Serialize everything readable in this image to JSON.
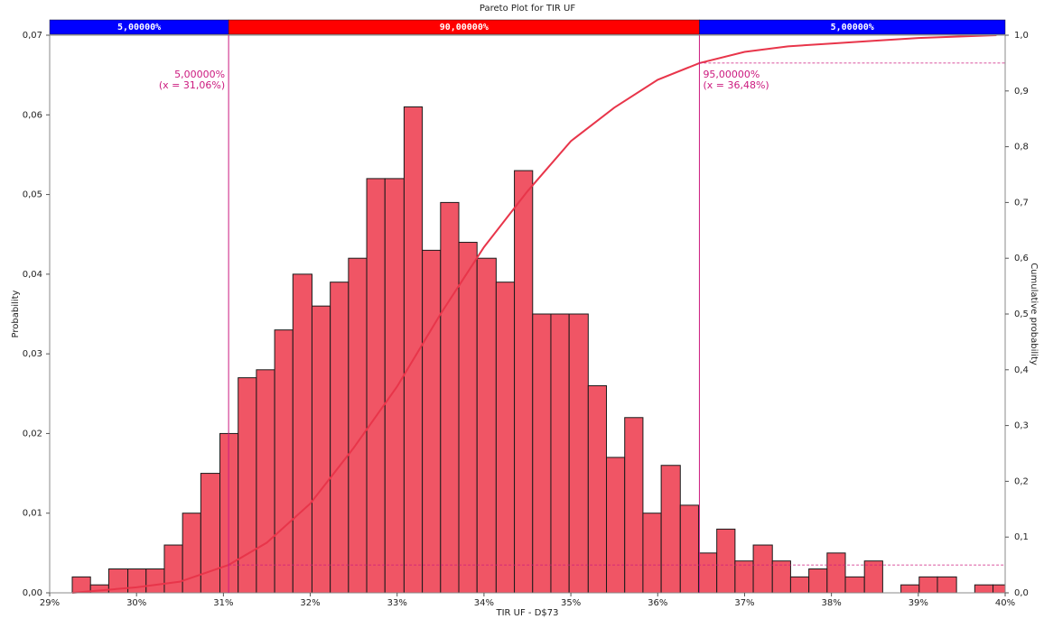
{
  "chart_data": {
    "type": "histogram",
    "title": "Pareto Plot for TIR UF",
    "xlabel": "TIR UF - D$73",
    "ylabel": "Probability",
    "y2label": "Cumulative probability",
    "color": "#f05565",
    "edgecolor": "#1a1a1a",
    "bins": [
      29.26,
      29.47,
      29.68,
      29.9,
      30.11,
      30.32,
      30.53,
      30.74,
      30.96,
      31.17,
      31.38,
      31.59,
      31.8,
      32.02,
      32.23,
      32.44,
      32.65,
      32.86,
      33.08,
      33.29,
      33.5,
      33.71,
      33.92,
      34.14,
      34.35,
      34.56,
      34.77,
      34.98,
      35.2,
      35.41,
      35.62,
      35.83,
      36.04,
      36.26,
      36.47,
      36.68,
      36.89,
      37.1,
      37.32,
      37.53,
      37.74,
      37.95,
      38.16,
      38.38,
      38.59,
      38.8,
      39.01,
      39.22,
      39.44,
      39.65,
      39.86,
      40.07
    ],
    "values": [
      0.002,
      0.001,
      0.003,
      0.003,
      0.003,
      0.006,
      0.01,
      0.015,
      0.02,
      0.027,
      0.028,
      0.033,
      0.04,
      0.036,
      0.039,
      0.042,
      0.052,
      0.052,
      0.061,
      0.043,
      0.049,
      0.044,
      0.042,
      0.039,
      0.053,
      0.035,
      0.035,
      0.035,
      0.026,
      0.017,
      0.022,
      0.01,
      0.016,
      0.011,
      0.005,
      0.008,
      0.004,
      0.006,
      0.004,
      0.002,
      0.003,
      0.005,
      0.002,
      0.004,
      0,
      0.001,
      0.002,
      0.002,
      0,
      0.001,
      0.001
    ],
    "xlim": [
      29,
      40
    ],
    "xticks": [
      {
        "value": 29,
        "label": "29%"
      },
      {
        "value": 30,
        "label": "30%"
      },
      {
        "value": 31,
        "label": "31%"
      },
      {
        "value": 32,
        "label": "32%"
      },
      {
        "value": 33,
        "label": "33%"
      },
      {
        "value": 34,
        "label": "34%"
      },
      {
        "value": 35,
        "label": "35%"
      },
      {
        "value": 36,
        "label": "36%"
      },
      {
        "value": 37,
        "label": "37%"
      },
      {
        "value": 38,
        "label": "38%"
      },
      {
        "value": 39,
        "label": "39%"
      },
      {
        "value": 40,
        "label": "40%"
      }
    ],
    "ylim": [
      0,
      0.07
    ],
    "yticks": [
      {
        "value": 0,
        "label": "0,00"
      },
      {
        "value": 0.01,
        "label": "0,01"
      },
      {
        "value": 0.02,
        "label": "0,02"
      },
      {
        "value": 0.03,
        "label": "0,03"
      },
      {
        "value": 0.04,
        "label": "0,04"
      },
      {
        "value": 0.05,
        "label": "0,05"
      },
      {
        "value": 0.06,
        "label": "0,06"
      },
      {
        "value": 0.07,
        "label": "0,07"
      }
    ],
    "y2lim": [
      0,
      1
    ],
    "y2ticks": [
      {
        "value": 0,
        "label": "0,0"
      },
      {
        "value": 0.1,
        "label": "0,1"
      },
      {
        "value": 0.2,
        "label": "0,2"
      },
      {
        "value": 0.3,
        "label": "0,3"
      },
      {
        "value": 0.4,
        "label": "0,4"
      },
      {
        "value": 0.5,
        "label": "0,5"
      },
      {
        "value": 0.6,
        "label": "0,6"
      },
      {
        "value": 0.7,
        "label": "0,7"
      },
      {
        "value": 0.8,
        "label": "0,8"
      },
      {
        "value": 0.9,
        "label": "0,9"
      },
      {
        "value": 1,
        "label": "1,0"
      }
    ],
    "cumulative": {
      "axis": "y2",
      "color": "#e8354a",
      "x": [
        29.26,
        30.0,
        30.5,
        31.06,
        31.5,
        32.0,
        32.5,
        33.0,
        33.5,
        34.0,
        34.5,
        35.0,
        35.5,
        36.0,
        36.48,
        37.0,
        37.5,
        38.0,
        38.5,
        39.0,
        39.9
      ],
      "values": [
        0,
        0.01,
        0.02,
        0.05,
        0.09,
        0.16,
        0.26,
        0.37,
        0.5,
        0.62,
        0.72,
        0.81,
        0.87,
        0.92,
        0.95,
        0.97,
        0.98,
        0.985,
        0.99,
        0.995,
        1.0
      ]
    },
    "markers": [
      {
        "x": 31.06,
        "x_label": "(x = 31,06%)",
        "p": 0.05,
        "p_label": "5,00000%"
      },
      {
        "x": 36.48,
        "x_label": "(x = 36,48%)",
        "p": 0.95,
        "p_label": "95,00000%"
      }
    ],
    "marker_color": "#cc1a7f",
    "bands": [
      {
        "value": 5,
        "label": "5,00000%",
        "color": "#0000ff"
      },
      {
        "value": 90,
        "label": "90,00000%",
        "color": "#ff0000"
      },
      {
        "value": 5,
        "label": "5,00000%",
        "color": "#0000ff"
      }
    ]
  }
}
